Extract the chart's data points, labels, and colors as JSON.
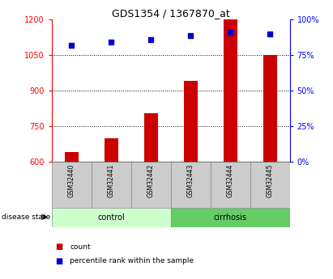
{
  "title": "GDS1354 / 1367870_at",
  "samples": [
    "GSM32440",
    "GSM32441",
    "GSM32442",
    "GSM32443",
    "GSM32444",
    "GSM32445"
  ],
  "counts": [
    640,
    700,
    805,
    940,
    1200,
    1050
  ],
  "percentile_ranks": [
    82,
    84,
    86,
    89,
    91,
    90
  ],
  "groups": [
    "control",
    "control",
    "control",
    "cirrhosis",
    "cirrhosis",
    "cirrhosis"
  ],
  "ylim_left": [
    600,
    1200
  ],
  "ylim_right": [
    0,
    100
  ],
  "yticks_left": [
    600,
    750,
    900,
    1050,
    1200
  ],
  "yticks_right": [
    0,
    25,
    50,
    75,
    100
  ],
  "bar_color": "#cc0000",
  "dot_color": "#0000cc",
  "control_color": "#ccffcc",
  "cirrhosis_color": "#66cc66",
  "sample_box_color": "#cccccc",
  "bar_width": 0.35,
  "group_label": "disease state",
  "legend_count": "count",
  "legend_percentile": "percentile rank within the sample"
}
